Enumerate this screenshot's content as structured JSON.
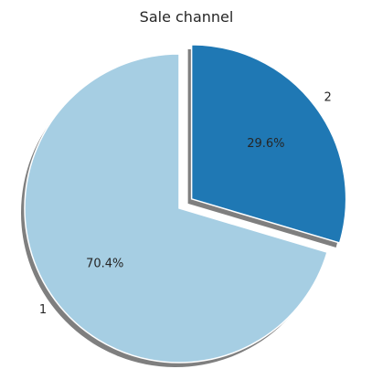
{
  "chart_data": {
    "type": "pie",
    "title": "Sale channel",
    "categories": [
      "1",
      "2"
    ],
    "values": [
      70.4,
      29.6
    ],
    "percent_labels": [
      "70.4%",
      "29.6%"
    ],
    "colors": [
      "#a6cee3",
      "#1f78b4"
    ],
    "exploded": [
      false,
      true
    ],
    "shadow": true,
    "start_angle_deg": 90,
    "direction": "counterclockwise"
  }
}
